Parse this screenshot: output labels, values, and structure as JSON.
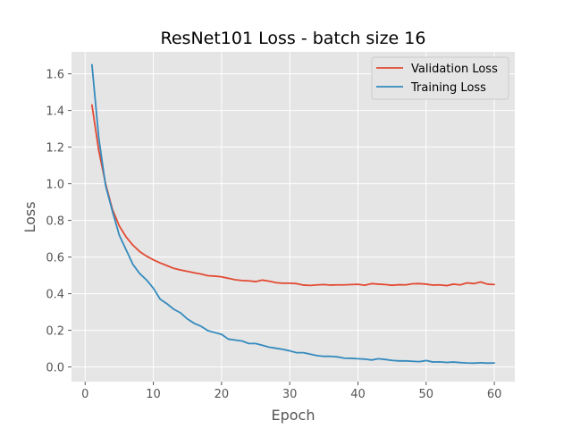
{
  "chart_data": {
    "type": "line",
    "title": "ResNet101 Loss - batch size 16",
    "xlabel": "Epoch",
    "ylabel": "Loss",
    "xlim": [
      -2,
      63
    ],
    "ylim": [
      -0.08,
      1.72
    ],
    "xticks": [
      0,
      10,
      20,
      30,
      40,
      50,
      60
    ],
    "yticks": [
      0.0,
      0.2,
      0.4,
      0.6,
      0.8,
      1.0,
      1.2,
      1.4,
      1.6
    ],
    "grid": true,
    "legend_position": "top-right",
    "x": [
      1,
      2,
      3,
      4,
      5,
      6,
      7,
      8,
      9,
      10,
      11,
      12,
      13,
      14,
      15,
      16,
      17,
      18,
      19,
      20,
      21,
      22,
      23,
      24,
      25,
      26,
      27,
      28,
      29,
      30,
      31,
      32,
      33,
      34,
      35,
      36,
      37,
      38,
      39,
      40,
      41,
      42,
      43,
      44,
      45,
      46,
      47,
      48,
      49,
      50,
      51,
      52,
      53,
      54,
      55,
      56,
      57,
      58,
      59,
      60
    ],
    "series": [
      {
        "name": "Validation Loss",
        "color": "#e24a33",
        "values": [
          1.43,
          1.18,
          1.0,
          0.86,
          0.77,
          0.71,
          0.665,
          0.63,
          0.605,
          0.585,
          0.568,
          0.553,
          0.538,
          0.529,
          0.522,
          0.514,
          0.507,
          0.498,
          0.496,
          0.492,
          0.484,
          0.476,
          0.472,
          0.47,
          0.466,
          0.474,
          0.468,
          0.46,
          0.457,
          0.457,
          0.455,
          0.447,
          0.445,
          0.448,
          0.45,
          0.447,
          0.448,
          0.448,
          0.45,
          0.451,
          0.446,
          0.455,
          0.452,
          0.45,
          0.446,
          0.449,
          0.448,
          0.454,
          0.455,
          0.452,
          0.447,
          0.448,
          0.444,
          0.452,
          0.448,
          0.459,
          0.455,
          0.464,
          0.452,
          0.45
        ]
      },
      {
        "name": "Training Loss",
        "color": "#348abd",
        "values": [
          1.65,
          1.25,
          0.99,
          0.85,
          0.72,
          0.64,
          0.56,
          0.51,
          0.475,
          0.43,
          0.37,
          0.345,
          0.315,
          0.295,
          0.262,
          0.238,
          0.222,
          0.198,
          0.188,
          0.178,
          0.152,
          0.147,
          0.142,
          0.128,
          0.128,
          0.118,
          0.108,
          0.102,
          0.096,
          0.088,
          0.078,
          0.078,
          0.07,
          0.062,
          0.058,
          0.058,
          0.055,
          0.048,
          0.047,
          0.045,
          0.043,
          0.038,
          0.045,
          0.041,
          0.036,
          0.033,
          0.033,
          0.031,
          0.029,
          0.035,
          0.027,
          0.028,
          0.025,
          0.027,
          0.024,
          0.022,
          0.021,
          0.023,
          0.021,
          0.022
        ]
      }
    ]
  }
}
